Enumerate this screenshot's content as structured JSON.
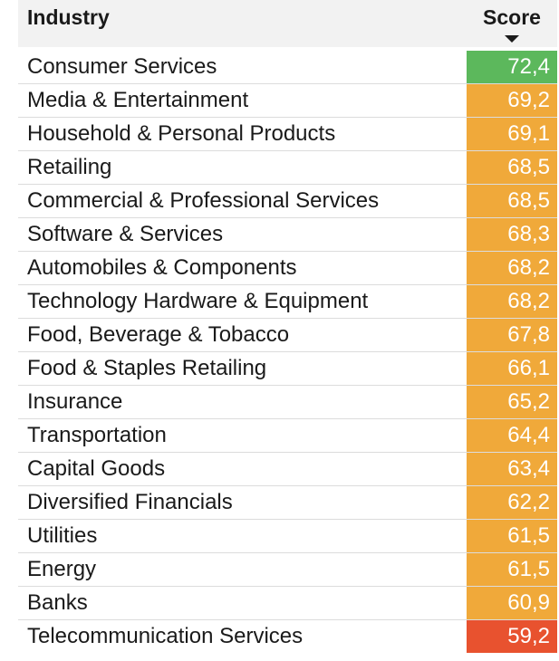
{
  "header": {
    "industry": "Industry",
    "score": "Score"
  },
  "colors": {
    "high": "#5cb85c",
    "mid": "#f0a93a",
    "low": "#e8522f"
  },
  "chart_data": {
    "type": "table",
    "columns": [
      "Industry",
      "Score"
    ],
    "sorted_by": "Score (descending)",
    "rows": [
      {
        "industry": "Consumer Services",
        "score": "72,4",
        "value": 72.4,
        "level": "high"
      },
      {
        "industry": "Media & Entertainment",
        "score": "69,2",
        "value": 69.2,
        "level": "mid"
      },
      {
        "industry": "Household & Personal Products",
        "score": "69,1",
        "value": 69.1,
        "level": "mid"
      },
      {
        "industry": "Retailing",
        "score": "68,5",
        "value": 68.5,
        "level": "mid"
      },
      {
        "industry": "Commercial & Professional Services",
        "score": "68,5",
        "value": 68.5,
        "level": "mid"
      },
      {
        "industry": "Software & Services",
        "score": "68,3",
        "value": 68.3,
        "level": "mid"
      },
      {
        "industry": "Automobiles & Components",
        "score": "68,2",
        "value": 68.2,
        "level": "mid"
      },
      {
        "industry": "Technology Hardware & Equipment",
        "score": "68,2",
        "value": 68.2,
        "level": "mid"
      },
      {
        "industry": "Food, Beverage & Tobacco",
        "score": "67,8",
        "value": 67.8,
        "level": "mid"
      },
      {
        "industry": "Food & Staples Retailing",
        "score": "66,1",
        "value": 66.1,
        "level": "mid"
      },
      {
        "industry": "Insurance",
        "score": "65,2",
        "value": 65.2,
        "level": "mid"
      },
      {
        "industry": "Transportation",
        "score": "64,4",
        "value": 64.4,
        "level": "mid"
      },
      {
        "industry": "Capital Goods",
        "score": "63,4",
        "value": 63.4,
        "level": "mid"
      },
      {
        "industry": "Diversified Financials",
        "score": "62,2",
        "value": 62.2,
        "level": "mid"
      },
      {
        "industry": "Utilities",
        "score": "61,5",
        "value": 61.5,
        "level": "mid"
      },
      {
        "industry": "Energy",
        "score": "61,5",
        "value": 61.5,
        "level": "mid"
      },
      {
        "industry": "Banks",
        "score": "60,9",
        "value": 60.9,
        "level": "mid"
      },
      {
        "industry": "Telecommunication Services",
        "score": "59,2",
        "value": 59.2,
        "level": "low"
      }
    ]
  }
}
